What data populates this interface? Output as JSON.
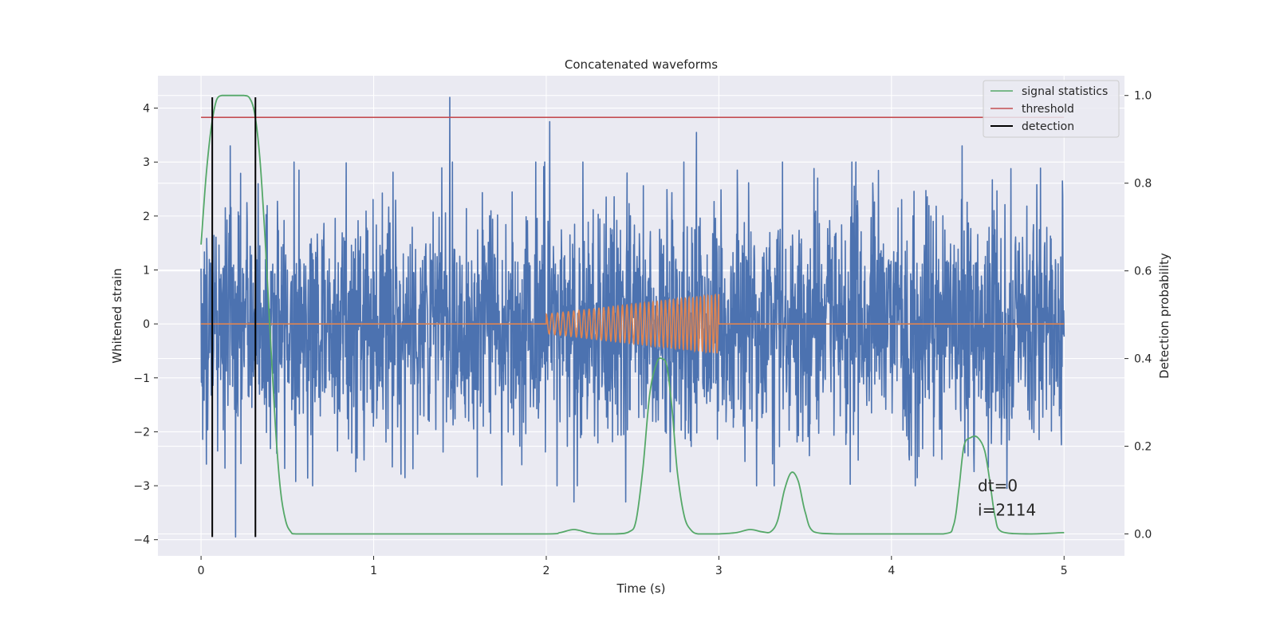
{
  "chart_data": {
    "type": "line",
    "title": "Concatenated waveforms",
    "xlabel": "Time (s)",
    "ylabel": "Whitened strain",
    "y2label": "Detection probability",
    "xlim": [
      -0.25,
      5.35
    ],
    "ylim": [
      -4.3,
      4.6
    ],
    "y2lim": [
      -0.05,
      1.045
    ],
    "x_ticks": [
      0,
      1,
      2,
      3,
      4,
      5
    ],
    "y_ticks": [
      -4,
      -3,
      -2,
      -1,
      0,
      1,
      2,
      3,
      4
    ],
    "y2_ticks": [
      0.0,
      0.2,
      0.4,
      0.6,
      0.8,
      1.0
    ],
    "grid": true,
    "legend_position": "top-right",
    "colors": {
      "strain": "#4c72b0",
      "template": "#dd8452",
      "signal": "#55a868",
      "threshold": "#c44e52",
      "detection": "#000000",
      "background": "#eaeaf2",
      "grid": "#ffffff"
    },
    "strain": {
      "x_range": [
        0,
        5
      ],
      "typical_amplitude": 1.3,
      "peaks": [
        [
          1.44,
          4.2
        ],
        [
          2.02,
          3.75
        ],
        [
          2.87,
          3.55
        ],
        [
          4.41,
          3.3
        ],
        [
          0.17,
          3.3
        ],
        [
          0.33,
          2.6
        ],
        [
          4.99,
          2.65
        ]
      ],
      "troughs": [
        [
          0.2,
          -3.95
        ],
        [
          2.16,
          -3.3
        ],
        [
          2.46,
          -3.3
        ],
        [
          3.32,
          -3.0
        ],
        [
          4.67,
          -3.05
        ],
        [
          0.03,
          -2.6
        ]
      ]
    },
    "template": {
      "x_start": 2.0,
      "x_end": 3.0,
      "amp_start": 0.18,
      "amp_end": 0.55,
      "freq_start": 30,
      "freq_end": 48
    },
    "series": [
      {
        "name": "signal statistics",
        "x": [
          0.0,
          0.03,
          0.06,
          0.09,
          0.12,
          0.15,
          0.2,
          0.25,
          0.28,
          0.31,
          0.34,
          0.37,
          0.4,
          0.43,
          0.46,
          0.49,
          0.52,
          0.55,
          0.7,
          1.0,
          1.5,
          2.0,
          2.08,
          2.16,
          2.24,
          2.3,
          2.4,
          2.48,
          2.52,
          2.56,
          2.6,
          2.64,
          2.67,
          2.7,
          2.73,
          2.76,
          2.8,
          2.84,
          2.88,
          2.92,
          3.0,
          3.1,
          3.18,
          3.25,
          3.3,
          3.34,
          3.38,
          3.42,
          3.46,
          3.5,
          3.55,
          3.7,
          4.0,
          4.3,
          4.36,
          4.39,
          4.42,
          4.46,
          4.5,
          4.54,
          4.57,
          4.6,
          4.64,
          4.8,
          5.0
        ],
        "y": [
          0.66,
          0.82,
          0.93,
          0.99,
          1.0,
          1.0,
          1.0,
          1.0,
          0.995,
          0.96,
          0.86,
          0.68,
          0.46,
          0.25,
          0.1,
          0.03,
          0.005,
          0.0,
          0.0,
          0.0,
          0.0,
          0.0,
          0.003,
          0.01,
          0.003,
          0.0,
          0.0,
          0.005,
          0.03,
          0.15,
          0.32,
          0.39,
          0.4,
          0.38,
          0.28,
          0.14,
          0.04,
          0.008,
          0.0,
          0.0,
          0.0,
          0.003,
          0.01,
          0.005,
          0.005,
          0.03,
          0.1,
          0.14,
          0.12,
          0.05,
          0.005,
          0.0,
          0.0,
          0.0,
          0.02,
          0.1,
          0.2,
          0.22,
          0.22,
          0.19,
          0.12,
          0.04,
          0.005,
          0.0,
          0.003
        ]
      },
      {
        "name": "threshold",
        "x": [
          0,
          5
        ],
        "y": [
          0.95,
          0.95
        ]
      },
      {
        "name": "detection",
        "x": [
          0.065,
          0.315
        ],
        "y_range": [
          -3.95,
          4.2
        ]
      }
    ],
    "annotations": [
      "dt=0",
      "i=2114"
    ]
  }
}
